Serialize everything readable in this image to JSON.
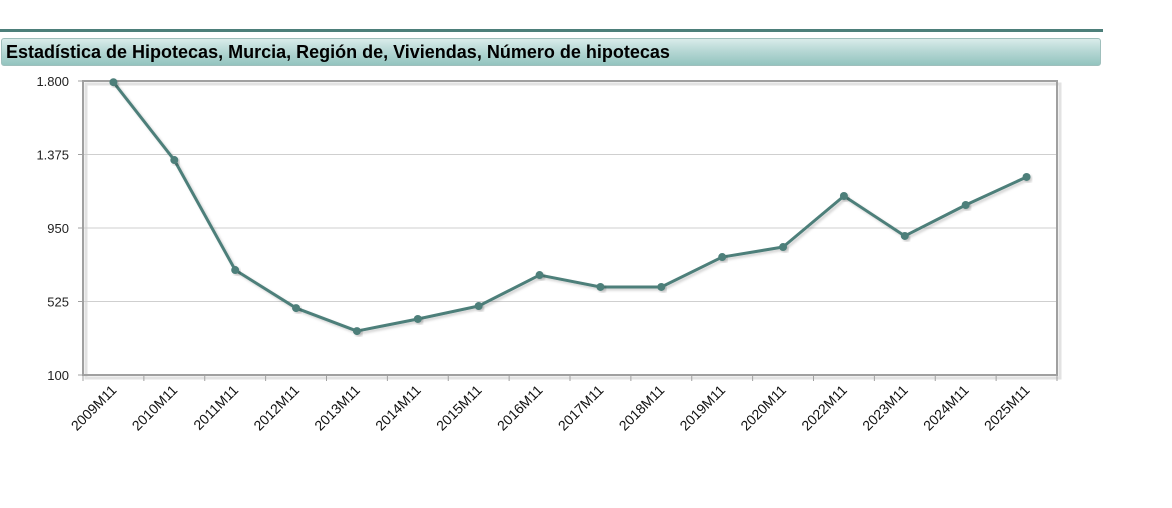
{
  "header": {
    "title": "Estadística de Hipotecas, Murcia, Región de, Viviendas, Número de hipotecas"
  },
  "colors": {
    "line": "#4d7f7a",
    "title_bar_top": "#d9ecea",
    "title_bar_bottom": "#93c4bf",
    "rule": "#4d7f7a",
    "grid": "#cfcfcf",
    "axis": "#a0a0a0"
  },
  "chart_data": {
    "type": "line",
    "title": "Estadística de Hipotecas, Murcia, Región de, Viviendas, Número de hipotecas",
    "xlabel": "",
    "ylabel": "",
    "ylim": [
      100,
      1800
    ],
    "yticks": [
      100,
      525,
      950,
      1375,
      1800
    ],
    "ytick_labels": [
      "100",
      "525",
      "950",
      "1.375",
      "1.800"
    ],
    "grid": true,
    "legend": null,
    "categories": [
      "2009M11",
      "2010M11",
      "2011M11",
      "2012M11",
      "2013M11",
      "2014M11",
      "2015M11",
      "2016M11",
      "2017M11",
      "2018M11",
      "2019M11",
      "2020M11",
      "2022M11",
      "2023M11",
      "2024M11",
      "2025M11"
    ],
    "series": [
      {
        "name": "Número de hipotecas",
        "values": [
          1793,
          1343,
          707,
          487,
          354,
          424,
          499,
          678,
          609,
          609,
          782,
          840,
          1135,
          904,
          1083,
          1245
        ]
      }
    ]
  }
}
